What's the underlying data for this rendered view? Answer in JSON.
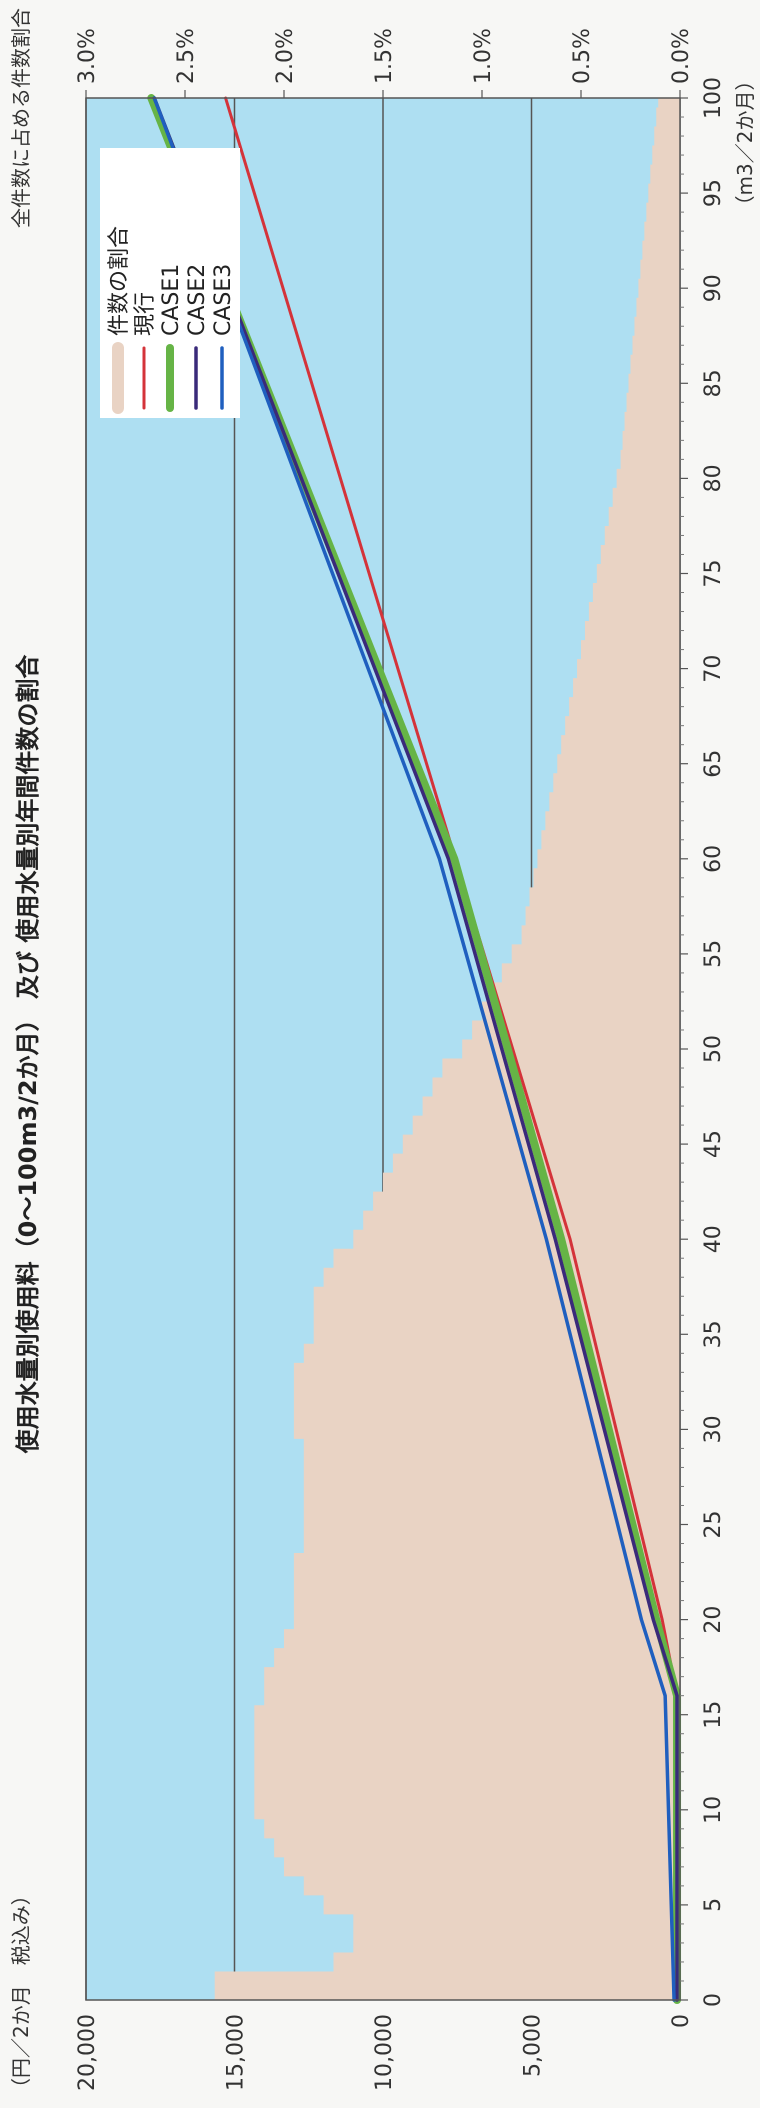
{
  "chart_data": {
    "type": "line",
    "title": "使用水量別使用料（0～100m3/2か月） 及び 使用水量別年間件数の割合",
    "y_left_label": "（円／2か月　税込み）",
    "y_right_label": "全件数に占める件数割合",
    "x_label": "（m3／2か月）",
    "xlim": [
      0,
      100
    ],
    "ylim_left": [
      0,
      20000
    ],
    "ylim_right": [
      0,
      3.0
    ],
    "x_ticks": [
      "0",
      "5",
      "10",
      "15",
      "20",
      "25",
      "30",
      "35",
      "40",
      "45",
      "50",
      "55",
      "60",
      "65",
      "70",
      "75",
      "80",
      "85",
      "90",
      "95",
      "100"
    ],
    "y_left_ticks": [
      "0",
      "5,000",
      "10,000",
      "15,000",
      "20,000"
    ],
    "y_right_ticks": [
      "0.0%",
      "0.5%",
      "1.0%",
      "1.5%",
      "2.0%",
      "2.5%",
      "3.0%"
    ],
    "grid": true,
    "legend_position": "top-right",
    "area": {
      "name": "件数の割合",
      "x": [
        0,
        1,
        2,
        3,
        4,
        5,
        6,
        7,
        8,
        9,
        10,
        11,
        12,
        13,
        14,
        15,
        16,
        17,
        18,
        19,
        20,
        21,
        22,
        23,
        24,
        25,
        26,
        27,
        28,
        29,
        30,
        31,
        32,
        33,
        34,
        35,
        36,
        37,
        38,
        39,
        40,
        41,
        42,
        43,
        44,
        45,
        46,
        47,
        48,
        49,
        50,
        51,
        52,
        53,
        54,
        55,
        56,
        57,
        58,
        59,
        60,
        61,
        62,
        63,
        64,
        65,
        66,
        67,
        68,
        69,
        70,
        71,
        72,
        73,
        74,
        75,
        76,
        77,
        78,
        79,
        80,
        81,
        82,
        83,
        84,
        85,
        86,
        87,
        88,
        89,
        90,
        91,
        92,
        93,
        94,
        95,
        96,
        97,
        98,
        99,
        100
      ],
      "values": [
        2.35,
        2.35,
        1.75,
        1.65,
        1.65,
        1.8,
        1.9,
        2.0,
        2.05,
        2.1,
        2.15,
        2.15,
        2.15,
        2.15,
        2.15,
        2.15,
        2.1,
        2.1,
        2.05,
        2.0,
        1.95,
        1.95,
        1.95,
        1.95,
        1.9,
        1.9,
        1.9,
        1.9,
        1.9,
        1.9,
        1.95,
        1.95,
        1.95,
        1.95,
        1.9,
        1.85,
        1.85,
        1.85,
        1.8,
        1.75,
        1.65,
        1.6,
        1.55,
        1.5,
        1.45,
        1.4,
        1.35,
        1.3,
        1.25,
        1.2,
        1.1,
        1.05,
        1.0,
        0.95,
        0.9,
        0.85,
        0.8,
        0.78,
        0.76,
        0.74,
        0.72,
        0.7,
        0.68,
        0.66,
        0.64,
        0.62,
        0.6,
        0.58,
        0.56,
        0.54,
        0.52,
        0.5,
        0.48,
        0.46,
        0.44,
        0.42,
        0.4,
        0.38,
        0.36,
        0.34,
        0.32,
        0.3,
        0.29,
        0.28,
        0.27,
        0.26,
        0.25,
        0.24,
        0.23,
        0.22,
        0.21,
        0.2,
        0.19,
        0.18,
        0.17,
        0.16,
        0.15,
        0.14,
        0.13,
        0.12,
        0.11
      ],
      "color": "#e9d3c4"
    },
    "series": [
      {
        "name": "現行",
        "x": [
          0,
          16,
          20,
          40,
          100
        ],
        "values": [
          100,
          100,
          600,
          3700,
          15300
        ],
        "color": "#d4333a"
      },
      {
        "name": "CASE1",
        "x": [
          0,
          16,
          20,
          40,
          60,
          100
        ],
        "values": [
          100,
          100,
          800,
          4000,
          7600,
          17800
        ],
        "color": "#66b446"
      },
      {
        "name": "CASE2",
        "x": [
          0,
          16,
          20,
          40,
          60,
          100
        ],
        "values": [
          100,
          100,
          900,
          4200,
          7800,
          17700
        ],
        "color": "#3a2a7a"
      },
      {
        "name": "CASE3",
        "x": [
          0,
          16,
          20,
          40,
          60,
          100
        ],
        "values": [
          200,
          500,
          1300,
          4500,
          8100,
          17700
        ],
        "color": "#1f5fbf"
      }
    ],
    "background_color": "#aedff2"
  }
}
